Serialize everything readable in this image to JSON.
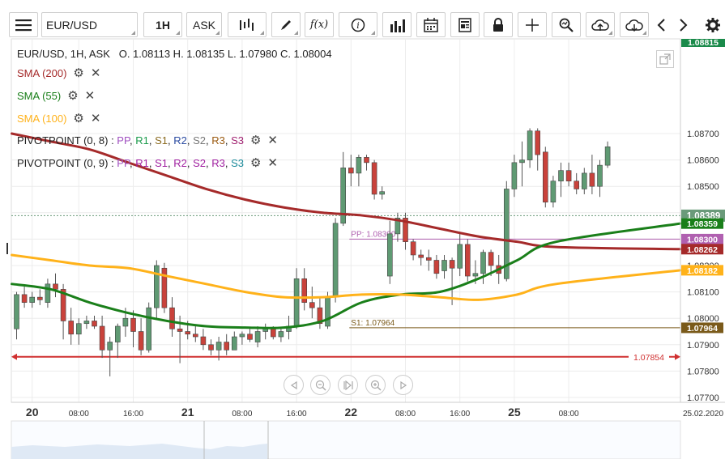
{
  "toolbar": {
    "symbol": "EUR/USD",
    "timeframe": "1H",
    "price_type": "ASK",
    "icons": [
      "menu-icon",
      "bar-style-icon",
      "draw-icon",
      "function-icon",
      "info-icon",
      "histogram-icon",
      "calendar-icon",
      "news-icon",
      "lock-icon",
      "crosshair-icon",
      "zoom-icon",
      "upload-icon",
      "download-icon",
      "chevron-left-icon",
      "chevron-right-icon",
      "gear-icon"
    ]
  },
  "legend": {
    "ohlc": "EUR/USD, 1H, ASK   O. 1.08113 H. 1.08135 L. 1.07980 C. 1.08004",
    "sma200": "SMA (200)",
    "sma55": "SMA (55)",
    "sma100": "SMA (100)",
    "pivot1_name": "PIVOTPOINT (0, 8)",
    "pivot2_name": "PIVOTPOINT (0, 9)",
    "pivot_sep": " : ",
    "pivot1_items": [
      {
        "t": "PP",
        "c": "#a050c0"
      },
      {
        "t": ", ",
        "c": "#222"
      },
      {
        "t": "R1",
        "c": "#1a9a4a"
      },
      {
        "t": ", ",
        "c": "#222"
      },
      {
        "t": "S1",
        "c": "#8a6a20"
      },
      {
        "t": ", ",
        "c": "#222"
      },
      {
        "t": "R2",
        "c": "#2a4aa0"
      },
      {
        "t": ", ",
        "c": "#222"
      },
      {
        "t": "S2",
        "c": "#777"
      },
      {
        "t": ", ",
        "c": "#222"
      },
      {
        "t": "R3",
        "c": "#9a5a10"
      },
      {
        "t": ", ",
        "c": "#222"
      },
      {
        "t": "S3",
        "c": "#a02070"
      }
    ],
    "pivot2_items": [
      {
        "t": "PP",
        "c": "#a050c0"
      },
      {
        "t": ", ",
        "c": "#222"
      },
      {
        "t": "R1",
        "c": "#a020a0"
      },
      {
        "t": ", ",
        "c": "#222"
      },
      {
        "t": "S1",
        "c": "#a020a0"
      },
      {
        "t": ", ",
        "c": "#222"
      },
      {
        "t": "R2",
        "c": "#a020a0"
      },
      {
        "t": ", ",
        "c": "#222"
      },
      {
        "t": "S2",
        "c": "#a020a0"
      },
      {
        "t": ", ",
        "c": "#222"
      },
      {
        "t": "R3",
        "c": "#a020a0"
      },
      {
        "t": ", ",
        "c": "#222"
      },
      {
        "t": "S3",
        "c": "#1a8a9a"
      }
    ]
  },
  "colors": {
    "bull": "#5f9a73",
    "bear": "#c9423b",
    "sma200": "#a52a2a",
    "sma55": "#1a7f1a",
    "sma100": "#ffb21a",
    "pivot": "#b060b0",
    "s1": "#7a5a1a",
    "level": "#d03030",
    "current": "#6a9a7a"
  },
  "chart_data": {
    "type": "candlestick",
    "ylim": [
      1.077,
      1.088
    ],
    "y_ticks": [
      "1.07700",
      "1.07800",
      "1.07900",
      "1.08000",
      "1.08100",
      "1.08200",
      "1.08300",
      "1.08400",
      "1.08500",
      "1.08600",
      "1.08700"
    ],
    "x_labels": [
      {
        "i": 2,
        "t": "20"
      },
      {
        "i": 8,
        "t": "08:00"
      },
      {
        "i": 15,
        "t": "16:00"
      },
      {
        "i": 22,
        "t": "21"
      },
      {
        "i": 29,
        "t": "08:00"
      },
      {
        "i": 36,
        "t": "16:00"
      },
      {
        "i": 43,
        "t": "22"
      },
      {
        "i": 50,
        "t": "08:00"
      },
      {
        "i": 57,
        "t": "16:00"
      },
      {
        "i": 64,
        "t": "25"
      },
      {
        "i": 71,
        "t": "08:00"
      }
    ],
    "date_label": "25.02.2020",
    "candles": [
      [
        1.0796,
        1.081,
        1.0792,
        1.0809
      ],
      [
        1.0809,
        1.0812,
        1.0804,
        1.0806
      ],
      [
        1.0806,
        1.081,
        1.0804,
        1.0808
      ],
      [
        1.0808,
        1.0811,
        1.0805,
        1.0807
      ],
      [
        1.0806,
        1.0815,
        1.0804,
        1.0813
      ],
      [
        1.0813,
        1.0817,
        1.0808,
        1.0811
      ],
      [
        1.0811,
        1.0813,
        1.0792,
        1.0799
      ],
      [
        1.0799,
        1.0804,
        1.079,
        1.0794
      ],
      [
        1.0794,
        1.08,
        1.079,
        1.0798
      ],
      [
        1.0798,
        1.0801,
        1.0796,
        1.0799
      ],
      [
        1.0799,
        1.0801,
        1.0796,
        1.0797
      ],
      [
        1.0797,
        1.0801,
        1.0785,
        1.0788
      ],
      [
        1.0788,
        1.0793,
        1.0778,
        1.0791
      ],
      [
        1.0791,
        1.0798,
        1.0785,
        1.0797
      ],
      [
        1.0797,
        1.0804,
        1.0793,
        1.08
      ],
      [
        1.08,
        1.0803,
        1.0789,
        1.0795
      ],
      [
        1.0795,
        1.08,
        1.0786,
        1.0788
      ],
      [
        1.0788,
        1.0806,
        1.0787,
        1.0804
      ],
      [
        1.0804,
        1.0822,
        1.08,
        1.082
      ],
      [
        1.0819,
        1.0821,
        1.0802,
        1.0804
      ],
      [
        1.0804,
        1.0808,
        1.0793,
        1.0796
      ],
      [
        1.0796,
        1.0801,
        1.0783,
        1.0795
      ],
      [
        1.0795,
        1.0799,
        1.0792,
        1.0794
      ],
      [
        1.0794,
        1.0797,
        1.0791,
        1.0793
      ],
      [
        1.0793,
        1.0796,
        1.0788,
        1.079
      ],
      [
        1.079,
        1.0792,
        1.0786,
        1.0788
      ],
      [
        1.0788,
        1.0793,
        1.0784,
        1.0791
      ],
      [
        1.0791,
        1.0794,
        1.0786,
        1.0788
      ],
      [
        1.0788,
        1.0795,
        1.0788,
        1.0793
      ],
      [
        1.0793,
        1.0795,
        1.079,
        1.0794
      ],
      [
        1.0794,
        1.0796,
        1.0791,
        1.0792
      ],
      [
        1.0791,
        1.0797,
        1.0789,
        1.0795
      ],
      [
        1.0795,
        1.0798,
        1.0792,
        1.0796
      ],
      [
        1.0796,
        1.0797,
        1.0792,
        1.0793
      ],
      [
        1.0793,
        1.0796,
        1.0791,
        1.0795
      ],
      [
        1.0795,
        1.0801,
        1.0792,
        1.0797
      ],
      [
        1.0797,
        1.0819,
        1.0796,
        1.0815
      ],
      [
        1.0815,
        1.0819,
        1.0803,
        1.0806
      ],
      [
        1.0806,
        1.0812,
        1.08,
        1.0804
      ],
      [
        1.0804,
        1.0808,
        1.0796,
        1.0798
      ],
      [
        1.0797,
        1.081,
        1.0796,
        1.0808
      ],
      [
        1.0808,
        1.0838,
        1.0806,
        1.0836
      ],
      [
        1.0836,
        1.0863,
        1.0835,
        1.0857
      ],
      [
        1.0857,
        1.0862,
        1.085,
        1.0855
      ],
      [
        1.0855,
        1.0862,
        1.085,
        1.0861
      ],
      [
        1.0861,
        1.0862,
        1.0856,
        1.0859
      ],
      [
        1.0859,
        1.086,
        1.0845,
        1.0847
      ],
      [
        1.0847,
        1.085,
        1.0845,
        1.0848
      ],
      [
        1.0816,
        1.0837,
        1.0813,
        1.0832
      ],
      [
        1.0832,
        1.084,
        1.0829,
        1.0838
      ],
      [
        1.0838,
        1.084,
        1.0826,
        1.0829
      ],
      [
        1.0829,
        1.083,
        1.0822,
        1.0824
      ],
      [
        1.0824,
        1.0826,
        1.082,
        1.0823
      ],
      [
        1.0823,
        1.0826,
        1.0818,
        1.0822
      ],
      [
        1.0822,
        1.0824,
        1.0815,
        1.0817
      ],
      [
        1.0818,
        1.0824,
        1.0815,
        1.0822
      ],
      [
        1.0822,
        1.0823,
        1.0805,
        1.0819
      ],
      [
        1.0819,
        1.0832,
        1.0816,
        1.0828
      ],
      [
        1.0828,
        1.083,
        1.0814,
        1.0816
      ],
      [
        1.0816,
        1.0822,
        1.0813,
        1.0817
      ],
      [
        1.0817,
        1.0826,
        1.0813,
        1.0825
      ],
      [
        1.0825,
        1.0826,
        1.0816,
        1.082
      ],
      [
        1.082,
        1.0824,
        1.0813,
        1.0817
      ],
      [
        1.0815,
        1.0852,
        1.0814,
        1.0849
      ],
      [
        1.0849,
        1.0862,
        1.0846,
        1.0859
      ],
      [
        1.0859,
        1.0867,
        1.085,
        1.086
      ],
      [
        1.086,
        1.0872,
        1.0857,
        1.0871
      ],
      [
        1.0871,
        1.0872,
        1.0856,
        1.0862
      ],
      [
        1.0863,
        1.0865,
        1.0842,
        1.0844
      ],
      [
        1.0844,
        1.0854,
        1.0842,
        1.0852
      ],
      [
        1.0852,
        1.0859,
        1.0846,
        1.0856
      ],
      [
        1.0856,
        1.0859,
        1.085,
        1.0852
      ],
      [
        1.0852,
        1.0855,
        1.0847,
        1.0849
      ],
      [
        1.0849,
        1.0857,
        1.0847,
        1.0855
      ],
      [
        1.0855,
        1.0862,
        1.0847,
        1.085
      ],
      [
        1.085,
        1.086,
        1.0846,
        1.0858
      ],
      [
        1.0858,
        1.0867,
        1.0857,
        1.0865
      ]
    ],
    "series": [
      {
        "name": "SMA (200)",
        "color": "#a52a2a",
        "values": [
          [
            0,
            1.087
          ],
          [
            5,
            1.0867
          ],
          [
            10,
            1.0864
          ],
          [
            15,
            1.0859
          ],
          [
            20,
            1.0854
          ],
          [
            25,
            1.0849
          ],
          [
            30,
            1.0845
          ],
          [
            35,
            1.0842
          ],
          [
            40,
            1.084
          ],
          [
            45,
            1.0839
          ],
          [
            50,
            1.0837
          ],
          [
            55,
            1.0834
          ],
          [
            60,
            1.0831
          ],
          [
            65,
            1.0829
          ],
          [
            70,
            1.0827
          ],
          [
            76,
            1.08262
          ]
        ]
      },
      {
        "name": "SMA (55)",
        "color": "#1a7f1a",
        "values": [
          [
            0,
            1.0813
          ],
          [
            5,
            1.0811
          ],
          [
            10,
            1.0806
          ],
          [
            15,
            1.0802
          ],
          [
            20,
            1.0799
          ],
          [
            25,
            1.0797
          ],
          [
            30,
            1.07965
          ],
          [
            35,
            1.07965
          ],
          [
            40,
            1.0799
          ],
          [
            45,
            1.0806
          ],
          [
            50,
            1.0809
          ],
          [
            55,
            1.081
          ],
          [
            60,
            1.0815
          ],
          [
            65,
            1.0822
          ],
          [
            70,
            1.0829
          ],
          [
            76,
            1.08359
          ]
        ]
      },
      {
        "name": "SMA (100)",
        "color": "#ffb21a",
        "values": [
          [
            0,
            1.0824
          ],
          [
            5,
            1.0822
          ],
          [
            10,
            1.082
          ],
          [
            15,
            1.0819
          ],
          [
            20,
            1.0816
          ],
          [
            25,
            1.0813
          ],
          [
            30,
            1.081
          ],
          [
            35,
            1.0808
          ],
          [
            40,
            1.0808
          ],
          [
            45,
            1.0809
          ],
          [
            50,
            1.0809
          ],
          [
            55,
            1.0808
          ],
          [
            60,
            1.0807
          ],
          [
            65,
            1.0809
          ],
          [
            70,
            1.0813
          ],
          [
            76,
            1.08182
          ]
        ]
      }
    ],
    "pivot_pp": {
      "label": "PP: 1.08300",
      "value": 1.083,
      "from_index": 43
    },
    "pivot_s1": {
      "label": "S1: 1.07964",
      "value": 1.07964,
      "from_index": 43
    },
    "support_line": {
      "label": "1.07854",
      "value": 1.07854
    },
    "badges": [
      {
        "t": "1.08389",
        "v": 1.08389,
        "bg": "#6a9a7a"
      },
      {
        "t": "1.08359",
        "v": 1.08359,
        "bg": "#1a7f1a"
      },
      {
        "t": "1.08300",
        "v": 1.083,
        "bg": "#b060b0"
      },
      {
        "t": "1.08262",
        "v": 1.08262,
        "bg": "#a52a2a"
      },
      {
        "t": "1.08182",
        "v": 1.08182,
        "bg": "#ffb21a"
      },
      {
        "t": "1.07964",
        "v": 1.07964,
        "bg": "#7a5a1a"
      }
    ],
    "top_badge": {
      "t": "1.08815",
      "bg": "#1a8a4a"
    },
    "current_price": 1.08389
  }
}
